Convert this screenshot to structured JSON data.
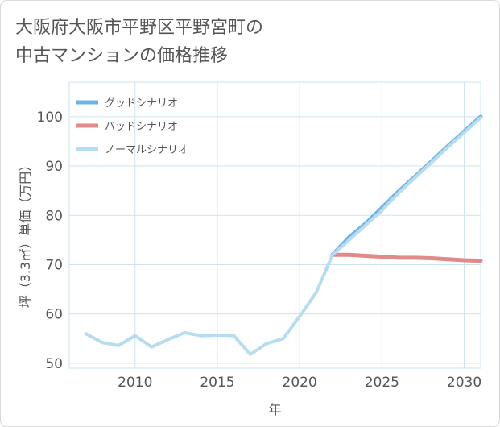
{
  "title_line1": "大阪府大阪市平野区平野宮町の",
  "title_line2": "中古マンションの価格推移",
  "colors": {
    "good": "#6cb4e6",
    "bad": "#e08a8a",
    "normal": "#b6dcef",
    "grid": "#cde3ef",
    "axis_text": "#555555",
    "title_text": "#555555"
  },
  "chart_data": {
    "type": "line",
    "xlabel": "年",
    "ylabel": "坪（3.3㎡）単価（万円）",
    "xlim": [
      2006,
      2031
    ],
    "ylim": [
      49,
      107
    ],
    "xticks": [
      2010,
      2015,
      2020,
      2025,
      2030
    ],
    "yticks": [
      50,
      60,
      70,
      80,
      90,
      100
    ],
    "legend_position": "top-left",
    "series": [
      {
        "key": "good",
        "name": "グッドシナリオ",
        "x": [
          2022,
          2023,
          2024,
          2025,
          2026,
          2027,
          2028,
          2029,
          2030,
          2031
        ],
        "values": [
          72,
          75.5,
          78.3,
          81.5,
          84.8,
          87.8,
          90.9,
          94.0,
          97.0,
          100.0
        ]
      },
      {
        "key": "bad",
        "name": "バッドシナリオ",
        "x": [
          2022,
          2023,
          2024,
          2025,
          2026,
          2027,
          2028,
          2029,
          2030,
          2031
        ],
        "values": [
          72,
          72,
          71.8,
          71.6,
          71.4,
          71.4,
          71.3,
          71.1,
          70.9,
          70.8
        ]
      },
      {
        "key": "normal",
        "name": "ノーマルシナリオ",
        "x": [
          2007,
          2008,
          2009,
          2010,
          2011,
          2012,
          2013,
          2014,
          2015,
          2016,
          2017,
          2018,
          2019,
          2020,
          2021,
          2022,
          2023,
          2024,
          2025,
          2026,
          2027,
          2028,
          2029,
          2030,
          2031
        ],
        "values": [
          56,
          54.2,
          53.6,
          55.6,
          53.3,
          54.8,
          56.2,
          55.6,
          55.7,
          55.6,
          51.8,
          54,
          55,
          59.5,
          64.3,
          72,
          75,
          78,
          81,
          84.5,
          87.6,
          90.7,
          93.8,
          96.8,
          99.8
        ]
      }
    ]
  }
}
